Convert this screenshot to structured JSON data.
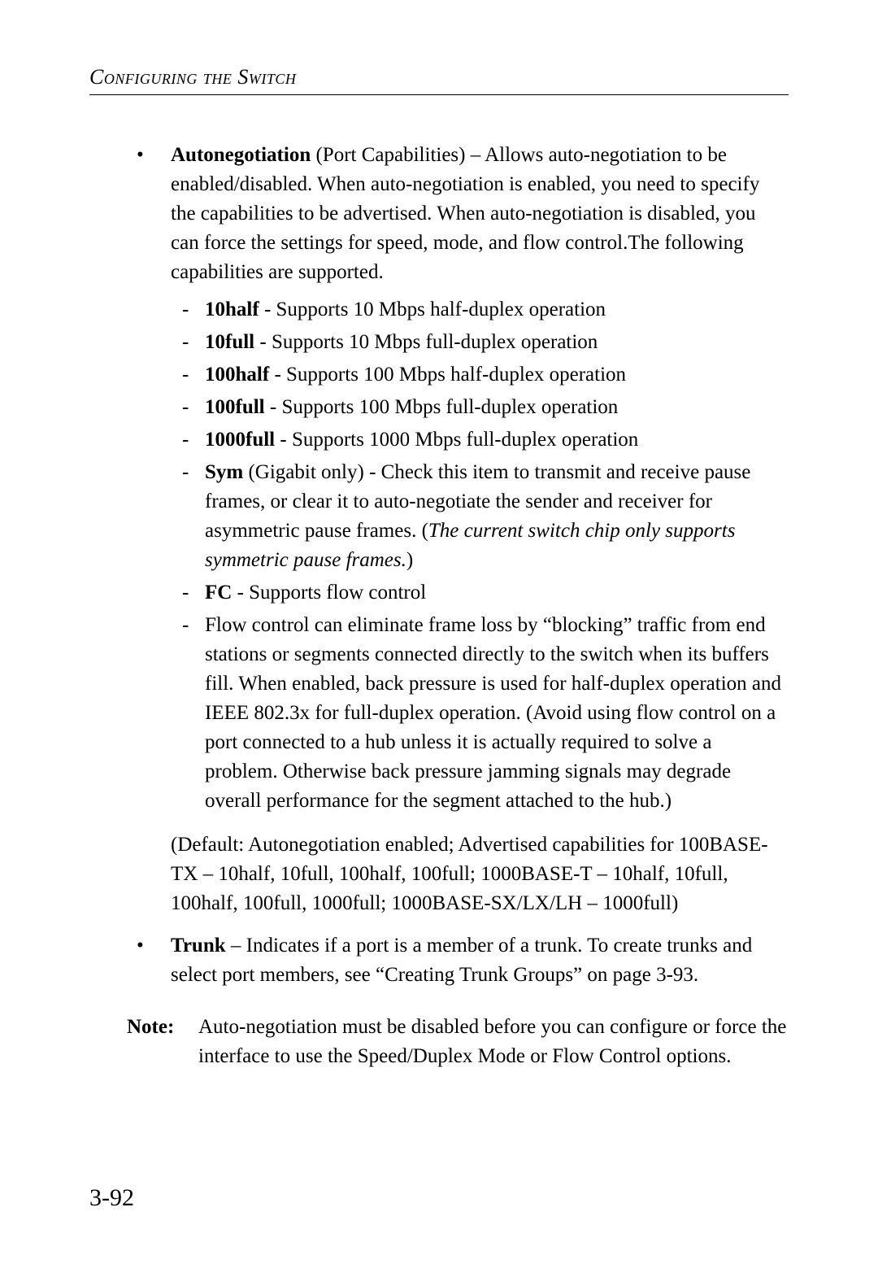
{
  "runningHead": "Configuring the Switch",
  "items": [
    {
      "term": "Autonegotiation",
      "termSuffix": " (Port Capabilities) – ",
      "body": "Allows auto-negotiation to be enabled/disabled. When auto-negotiation is enabled, you need to specify the capabilities to be advertised. When auto-negotiation is disabled, you can force the settings for speed, mode, and flow control.The following capabilities are supported.",
      "caps": [
        {
          "term": "10half",
          "text": " - Supports 10 Mbps half-duplex operation"
        },
        {
          "term": "10full",
          "text": " - Supports 10 Mbps full-duplex operation"
        },
        {
          "term": "100half",
          "text": " - Supports 100 Mbps half-duplex operation"
        },
        {
          "term": "100full",
          "text": " - Supports 100 Mbps full-duplex operation"
        },
        {
          "term": "1000full",
          "text": " - Supports 1000 Mbps full-duplex operation"
        },
        {
          "term": "Sym",
          "text": " (Gigabit only) - Check this item to transmit and receive pause frames, or clear it to auto-negotiate the sender and receiver for asymmetric pause frames. (",
          "italic": "The current switch chip only supports symmetric pause frames.",
          "tail": ")"
        },
        {
          "term": "FC",
          "text": " - Supports flow control"
        },
        {
          "plain": "Flow control can eliminate frame loss by “blocking” traffic from end stations or segments connected directly to the switch when its buffers fill. When enabled, back pressure is used for half-duplex operation and IEEE 802.3x for full-duplex operation. (Avoid using flow control on a port connected to a hub unless it is actually required to solve a problem. Otherwise back pressure jamming signals may degrade overall performance for the segment attached to the hub.)"
        }
      ],
      "default": "(Default: Autonegotiation enabled; Advertised capabilities for 100BASE-TX – 10half, 10full, 100half, 100full;  1000BASE-T – 10half, 10full, 100half, 100full, 1000full; 1000BASE-SX/LX/LH – 1000full)"
    },
    {
      "term": "Trunk",
      "termSuffix": " – ",
      "body": "Indicates if a port is a member of a trunk. To create trunks and select port members, see “Creating Trunk Groups” on page 3-93."
    }
  ],
  "note": {
    "label": "Note:",
    "text": "Auto-negotiation must be disabled before you can configure or force the interface to use the Speed/Duplex Mode or Flow Control options."
  },
  "pageNumber": "3-92"
}
